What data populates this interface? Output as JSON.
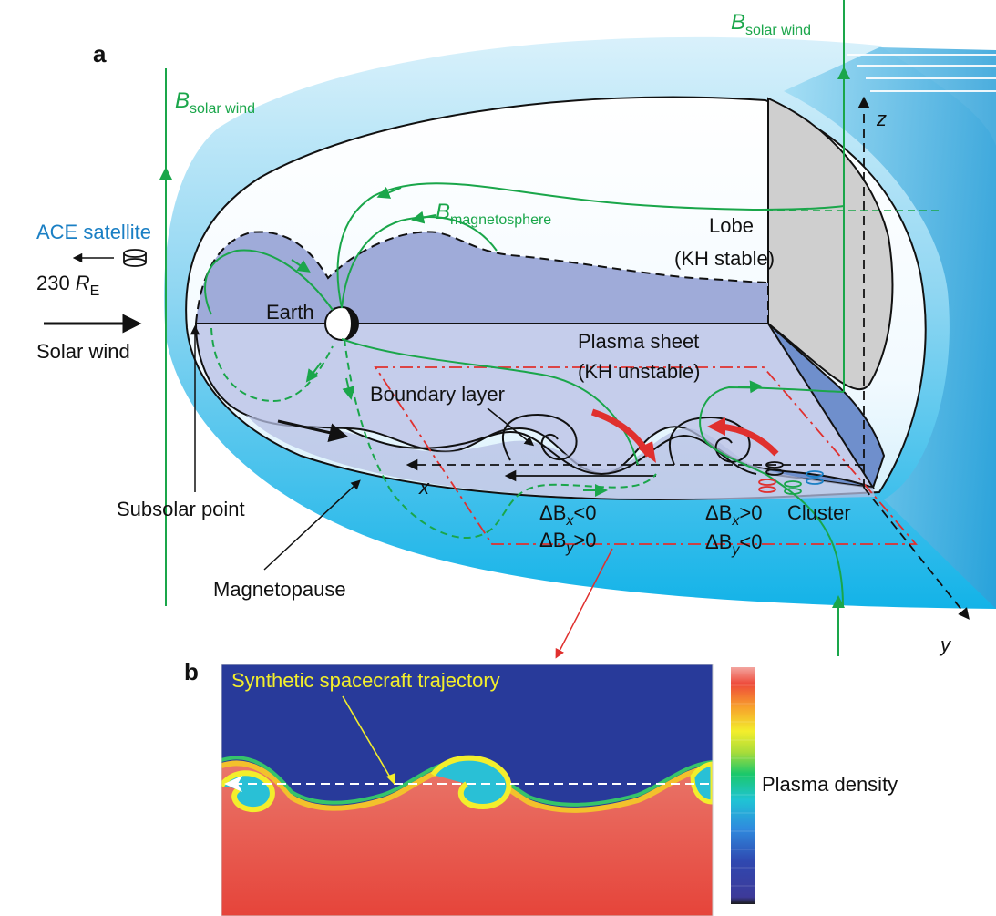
{
  "panel_a": {
    "letter": "a",
    "b_solar_wind_top_B": "B",
    "b_solar_wind_top_sub": "solar wind",
    "b_solar_wind_left_B": "B",
    "b_solar_wind_left_sub": "solar wind",
    "b_magnetosphere_B": "B",
    "b_magnetosphere_sub": "magnetosphere",
    "ace_satellite": "ACE satellite",
    "distance_value": "230",
    "distance_R": "R",
    "distance_sub": "E",
    "solar_wind": "Solar wind",
    "earth": "Earth",
    "lobe": "Lobe",
    "lobe_kh": "(KH stable)",
    "plasma_sheet": "Plasma sheet",
    "plasma_sheet_kh": "(KH unstable)",
    "boundary_layer": "Boundary layer",
    "subsolar_point": "Subsolar point",
    "magnetopause": "Magnetopause",
    "cluster": "Cluster",
    "axis_x": "x",
    "axis_y": "y",
    "axis_z": "z",
    "left_dbx": "ΔB",
    "left_dbx_sub": "x",
    "left_dbx_rel": "<0",
    "left_dby": "ΔB",
    "left_dby_sub": "y",
    "left_dby_rel": ">0",
    "right_dbx": "ΔB",
    "right_dbx_sub": "x",
    "right_dbx_rel": ">0",
    "right_dby": "ΔB",
    "right_dby_sub": "y",
    "right_dby_rel": "<0"
  },
  "panel_b": {
    "letter": "b",
    "trajectory_label": "Synthetic spacecraft trajectory",
    "colorbar_label": "Plasma density"
  },
  "colors": {
    "field_line": "#1aa64a",
    "red_frame": "#e0302e",
    "ace_blue": "#1a7fc4",
    "magnetosheath_blue": "#5cc8ef",
    "plasma_sheet": "#c5cdeb",
    "lobe_gray": "#cfcfcf",
    "sim_background": "#283a9a",
    "sim_plasma": "#e7685a"
  }
}
